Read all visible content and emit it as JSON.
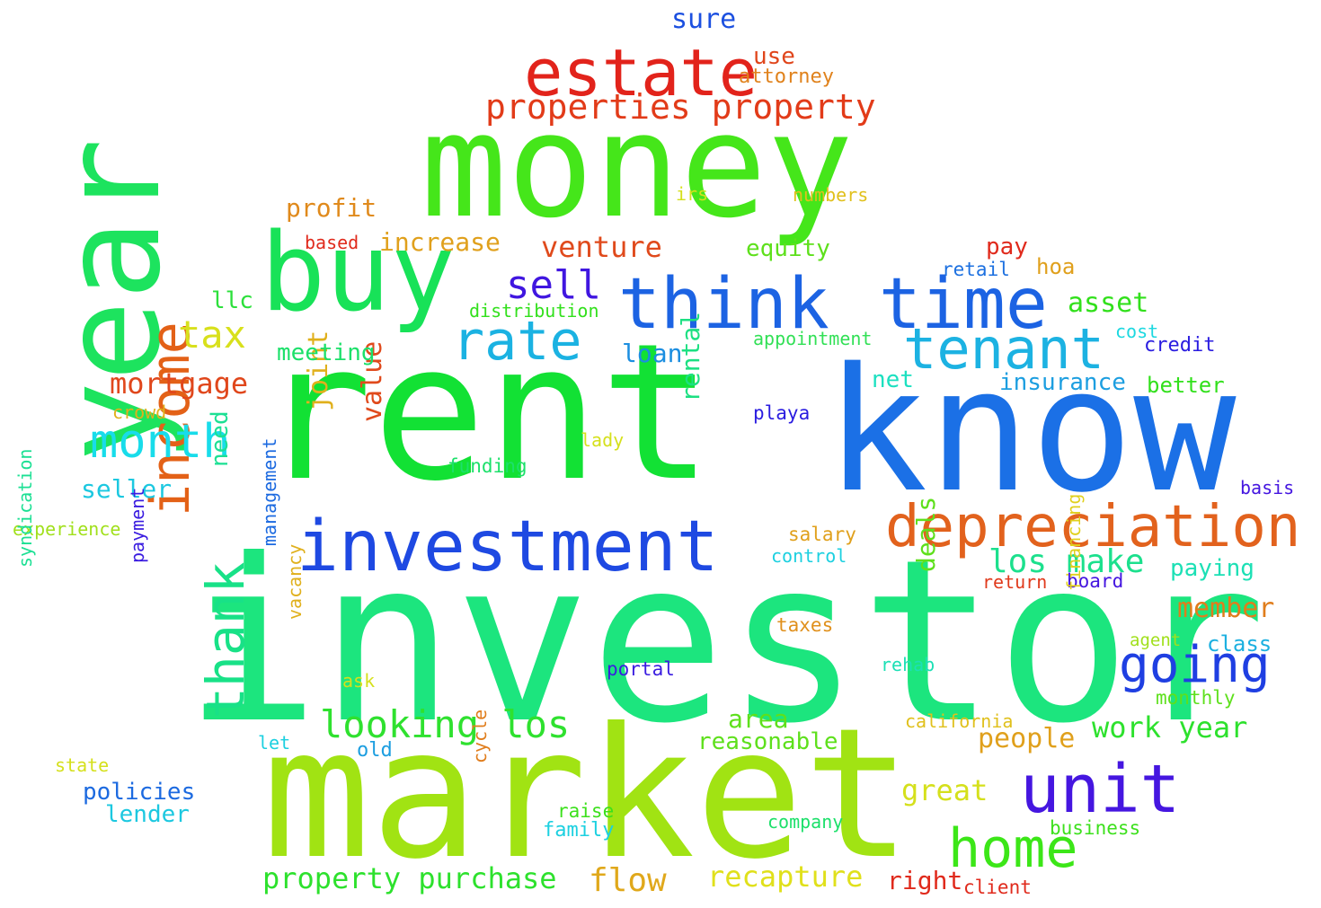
{
  "words": [
    {
      "text": "investor",
      "color": "#1ce57e"
    },
    {
      "text": "rent",
      "color": "#12e134"
    },
    {
      "text": "know",
      "color": "#1b70e6"
    },
    {
      "text": "market",
      "color": "#a1e313"
    },
    {
      "text": "money",
      "color": "#45e61a"
    },
    {
      "text": "buy",
      "color": "#18e258"
    },
    {
      "text": "year",
      "color": "#1de35e"
    },
    {
      "text": "investment",
      "color": "#1e49e2"
    },
    {
      "text": "think",
      "color": "#1c63e3"
    },
    {
      "text": "time",
      "color": "#1c63e3"
    },
    {
      "text": "estate",
      "color": "#e2231b"
    },
    {
      "text": "depreciation",
      "color": "#e2621d"
    },
    {
      "text": "unit",
      "color": "#4516e0"
    },
    {
      "text": "tenant",
      "color": "#1cb2e2"
    },
    {
      "text": "going",
      "color": "#1f3fe2"
    },
    {
      "text": "income",
      "color": "#e36117"
    },
    {
      "text": "home",
      "color": "#3ce618"
    },
    {
      "text": "rate",
      "color": "#1bb2e2"
    },
    {
      "text": "thank",
      "color": "#18e187"
    },
    {
      "text": "month",
      "color": "#18dcea"
    },
    {
      "text": "properties property",
      "color": "#e23b19"
    },
    {
      "text": "looking los",
      "color": "#2fe12f"
    },
    {
      "text": "sell",
      "color": "#4016e0"
    },
    {
      "text": "tax",
      "color": "#d8e01c"
    },
    {
      "text": "los make",
      "color": "#1ce08d"
    },
    {
      "text": "property purchase",
      "color": "#2de12d"
    },
    {
      "text": "work year",
      "color": "#2de12d"
    },
    {
      "text": "flow",
      "color": "#e0a81b"
    },
    {
      "text": "recapture",
      "color": "#e0e01b"
    },
    {
      "text": "great",
      "color": "#d5e01c"
    },
    {
      "text": "mortgage",
      "color": "#e0471c"
    },
    {
      "text": "venture",
      "color": "#e04a1c"
    },
    {
      "text": "profit",
      "color": "#e08a1c"
    },
    {
      "text": "increase",
      "color": "#e0a01c"
    },
    {
      "text": "asset",
      "color": "#32e01c"
    },
    {
      "text": "people",
      "color": "#e0a01c"
    },
    {
      "text": "member",
      "color": "#e07d1c"
    },
    {
      "text": "value",
      "color": "#e04a1c"
    },
    {
      "text": "joint",
      "color": "#e0b01c"
    },
    {
      "text": "rental",
      "color": "#1ce082"
    },
    {
      "text": "seller",
      "color": "#1cc8e0"
    },
    {
      "text": "area",
      "color": "#5ee01c"
    },
    {
      "text": "reasonable",
      "color": "#5ee01c"
    },
    {
      "text": "meeting",
      "color": "#1ce06a"
    },
    {
      "text": "loan",
      "color": "#1c8ee0"
    },
    {
      "text": "equity",
      "color": "#5ee01c"
    },
    {
      "text": "insurance",
      "color": "#1c9ee0"
    },
    {
      "text": "better",
      "color": "#32e01c"
    },
    {
      "text": "paying",
      "color": "#1ce0b5"
    },
    {
      "text": "class",
      "color": "#1cb0e0"
    },
    {
      "text": "policies",
      "color": "#1c6ae0"
    },
    {
      "text": "lender",
      "color": "#1cc8e0"
    },
    {
      "text": "estate-sure",
      "color": "#1c50e0"
    },
    {
      "text": "use",
      "color": "#e0461c"
    },
    {
      "text": "attorney",
      "color": "#e0821c"
    },
    {
      "text": "net",
      "color": "#1ce0c0"
    },
    {
      "text": "hoa",
      "color": "#e0a01c"
    },
    {
      "text": "pay",
      "color": "#e02a1c"
    },
    {
      "text": "need",
      "color": "#1ce094"
    },
    {
      "text": "deals",
      "color": "#5ee01c"
    },
    {
      "text": "llc",
      "color": "#2de03c"
    },
    {
      "text": "crowd",
      "color": "#e0b01c"
    },
    {
      "text": "distribution",
      "color": "#32e01c"
    },
    {
      "text": "appointment",
      "color": "#32e056"
    },
    {
      "text": "irs",
      "color": "#d5e01c"
    },
    {
      "text": "numbers",
      "color": "#e0c01c"
    },
    {
      "text": "based",
      "color": "#e02a1c"
    },
    {
      "text": "retail",
      "color": "#1c70e0"
    },
    {
      "text": "cost",
      "color": "#1cd8e0"
    },
    {
      "text": "credit",
      "color": "#2a1ce0"
    },
    {
      "text": "playa",
      "color": "#2a1ce0"
    },
    {
      "text": "lady",
      "color": "#d5e01c"
    },
    {
      "text": "funding",
      "color": "#1ce06a"
    },
    {
      "text": "basis",
      "color": "#4516e0"
    },
    {
      "text": "experience",
      "color": "#a1e01c"
    },
    {
      "text": "salary",
      "color": "#e0a01c"
    },
    {
      "text": "control",
      "color": "#1cd0e0"
    },
    {
      "text": "return",
      "color": "#e03a1c"
    },
    {
      "text": "board",
      "color": "#4516e0"
    },
    {
      "text": "payment",
      "color": "#3a1ce0"
    },
    {
      "text": "management",
      "color": "#1c6ae0"
    },
    {
      "text": "syndication",
      "color": "#1ce094"
    },
    {
      "text": "vacancy",
      "color": "#e0b01c"
    },
    {
      "text": "taxes",
      "color": "#e0901c"
    },
    {
      "text": "agent",
      "color": "#a1e01c"
    },
    {
      "text": "financing",
      "color": "#e0d01c"
    },
    {
      "text": "portal",
      "color": "#3a1ce0"
    },
    {
      "text": "rehab",
      "color": "#1ce0b5"
    },
    {
      "text": "monthly",
      "color": "#5ee01c"
    },
    {
      "text": "ask",
      "color": "#d5e01c"
    },
    {
      "text": "let",
      "color": "#1cd0e0"
    },
    {
      "text": "old",
      "color": "#1c9ee0"
    },
    {
      "text": "california",
      "color": "#e0c01c"
    },
    {
      "text": "state",
      "color": "#d5e01c"
    },
    {
      "text": "cycle",
      "color": "#e07d1c"
    },
    {
      "text": "raise",
      "color": "#3ce01c"
    },
    {
      "text": "family",
      "color": "#1cd0e0"
    },
    {
      "text": "company",
      "color": "#1ce06a"
    },
    {
      "text": "business",
      "color": "#3ce01c"
    },
    {
      "text": "right",
      "color": "#e02a1c"
    },
    {
      "text": "client",
      "color": "#e02a1c"
    }
  ],
  "labels": {
    "sure": "sure"
  }
}
